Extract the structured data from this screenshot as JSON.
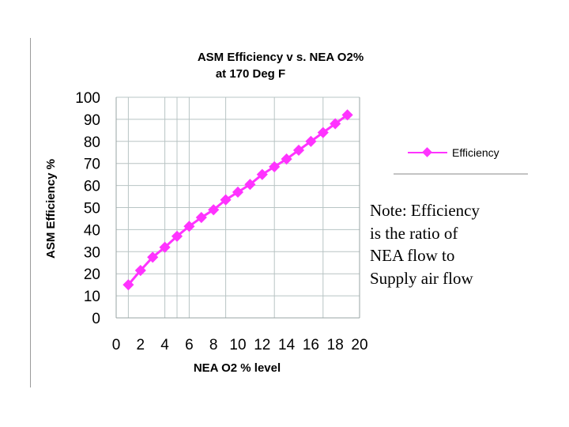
{
  "chart_data": {
    "type": "line",
    "title_lines": [
      "ASM  Efficiency v s. NEA O2%",
      "at 170 Deg F"
    ],
    "xlabel": "NEA O2 % level",
    "ylabel": "ASM Efficiency %",
    "x_ticks": [
      "0",
      "2",
      "4",
      "6",
      "8",
      "10",
      "12",
      "14",
      "16",
      "18",
      "20"
    ],
    "y_ticks": [
      "0",
      "10",
      "20",
      "30",
      "40",
      "50",
      "60",
      "70",
      "80",
      "90",
      "100"
    ],
    "xlim": [
      0,
      20
    ],
    "ylim": [
      0,
      100
    ],
    "vertical_gridlines_at": [
      1,
      4,
      5,
      6,
      9,
      13,
      17
    ],
    "horizontal_gridlines": true,
    "legend_position": "right",
    "series": [
      {
        "name": "Efficiency",
        "color": "#ff33ff",
        "marker": "diamond",
        "x": [
          1,
          2,
          3,
          4,
          5,
          6,
          7,
          8,
          9,
          10,
          11,
          12,
          13,
          14,
          15,
          16,
          17,
          18,
          19
        ],
        "y": [
          15,
          21.5,
          27.5,
          32,
          37,
          41.5,
          45.5,
          49,
          53.5,
          57,
          60.5,
          65,
          68.5,
          72,
          76,
          80,
          84,
          88,
          92
        ]
      }
    ]
  },
  "note": {
    "lines": [
      "Note: Efficiency",
      "is the ratio of",
      "NEA flow to",
      "Supply air flow"
    ]
  }
}
